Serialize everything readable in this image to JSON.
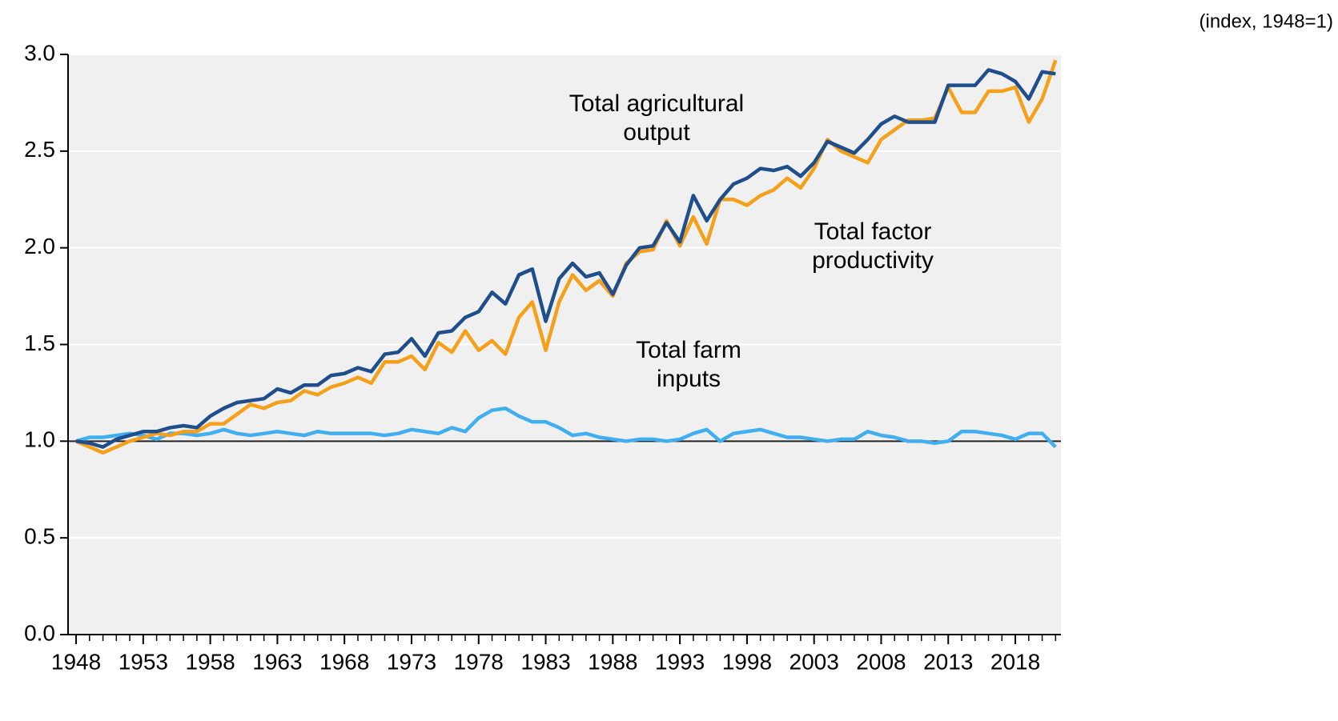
{
  "chart_data": {
    "type": "line",
    "unit_note": "(index, 1948=1)",
    "x": [
      1948,
      1949,
      1950,
      1951,
      1952,
      1953,
      1954,
      1955,
      1956,
      1957,
      1958,
      1959,
      1960,
      1961,
      1962,
      1963,
      1964,
      1965,
      1966,
      1967,
      1968,
      1969,
      1970,
      1971,
      1972,
      1973,
      1974,
      1975,
      1976,
      1977,
      1978,
      1979,
      1980,
      1981,
      1982,
      1983,
      1984,
      1985,
      1986,
      1987,
      1988,
      1989,
      1990,
      1991,
      1992,
      1993,
      1994,
      1995,
      1996,
      1997,
      1998,
      1999,
      2000,
      2001,
      2002,
      2003,
      2004,
      2005,
      2006,
      2007,
      2008,
      2009,
      2010,
      2011,
      2012,
      2013,
      2014,
      2015,
      2016,
      2017,
      2018,
      2019,
      2020,
      2021
    ],
    "series": [
      {
        "name": "Total agricultural output",
        "color": "#1f4e8c",
        "values": [
          1.0,
          0.99,
          0.97,
          1.01,
          1.03,
          1.05,
          1.05,
          1.07,
          1.08,
          1.07,
          1.13,
          1.17,
          1.2,
          1.21,
          1.22,
          1.27,
          1.25,
          1.29,
          1.29,
          1.34,
          1.35,
          1.38,
          1.36,
          1.45,
          1.46,
          1.53,
          1.44,
          1.56,
          1.57,
          1.64,
          1.67,
          1.77,
          1.71,
          1.86,
          1.89,
          1.62,
          1.84,
          1.92,
          1.85,
          1.87,
          1.76,
          1.91,
          2.0,
          2.01,
          2.13,
          2.03,
          2.27,
          2.14,
          2.25,
          2.33,
          2.36,
          2.41,
          2.4,
          2.42,
          2.37,
          2.44,
          2.55,
          2.52,
          2.49,
          2.56,
          2.64,
          2.68,
          2.65,
          2.65,
          2.65,
          2.84,
          2.84,
          2.84,
          2.92,
          2.9,
          2.86,
          2.77,
          2.91,
          2.9
        ]
      },
      {
        "name": "Total factor productivity",
        "color": "#f5a01a",
        "values": [
          1.0,
          0.97,
          0.94,
          0.97,
          1.0,
          1.02,
          1.04,
          1.03,
          1.05,
          1.05,
          1.09,
          1.09,
          1.14,
          1.19,
          1.17,
          1.2,
          1.21,
          1.26,
          1.24,
          1.28,
          1.3,
          1.33,
          1.3,
          1.41,
          1.41,
          1.44,
          1.37,
          1.51,
          1.46,
          1.57,
          1.47,
          1.52,
          1.45,
          1.64,
          1.72,
          1.47,
          1.72,
          1.86,
          1.78,
          1.83,
          1.75,
          1.92,
          1.98,
          1.99,
          2.14,
          2.01,
          2.16,
          2.02,
          2.25,
          2.25,
          2.22,
          2.27,
          2.3,
          2.36,
          2.31,
          2.41,
          2.56,
          2.5,
          2.47,
          2.44,
          2.56,
          2.61,
          2.66,
          2.66,
          2.67,
          2.83,
          2.7,
          2.7,
          2.81,
          2.81,
          2.83,
          2.65,
          2.77,
          2.97
        ]
      },
      {
        "name": "Total farm inputs",
        "color": "#41aef0",
        "values": [
          1.0,
          1.02,
          1.02,
          1.03,
          1.04,
          1.03,
          1.01,
          1.04,
          1.04,
          1.03,
          1.04,
          1.06,
          1.04,
          1.03,
          1.04,
          1.05,
          1.04,
          1.03,
          1.05,
          1.04,
          1.04,
          1.04,
          1.04,
          1.03,
          1.04,
          1.06,
          1.05,
          1.04,
          1.07,
          1.05,
          1.12,
          1.16,
          1.17,
          1.13,
          1.1,
          1.1,
          1.07,
          1.03,
          1.04,
          1.02,
          1.01,
          1.0,
          1.01,
          1.01,
          1.0,
          1.01,
          1.04,
          1.06,
          1.0,
          1.04,
          1.05,
          1.06,
          1.04,
          1.02,
          1.02,
          1.01,
          1.0,
          1.01,
          1.01,
          1.05,
          1.03,
          1.02,
          1.0,
          1.0,
          0.99,
          1.0,
          1.05,
          1.05,
          1.04,
          1.03,
          1.01,
          1.04,
          1.04,
          0.97
        ]
      }
    ],
    "xlim": [
      1947.4,
      2021.4
    ],
    "xticks": [
      1948,
      1953,
      1958,
      1963,
      1968,
      1973,
      1978,
      1983,
      1988,
      1993,
      1998,
      2003,
      2008,
      2013,
      2018
    ],
    "ylim": [
      0,
      3
    ],
    "yticks": [
      {
        "value": 0,
        "label": "0.0"
      },
      0.5,
      {
        "value": 1,
        "label": "1.0"
      },
      1.5,
      {
        "value": 2,
        "label": "2.0"
      },
      2.5,
      {
        "value": 3,
        "label": "3.0"
      }
    ],
    "reference_line": 1,
    "grid": true
  }
}
